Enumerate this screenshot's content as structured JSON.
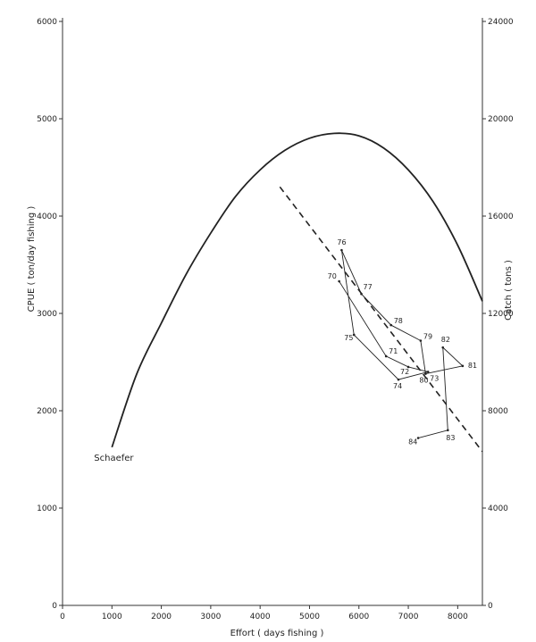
{
  "chart_data": {
    "type": "line",
    "xlabel": "Effort  ( days fishing )",
    "ylabel": "CPUE  ( ton/day  fishing )",
    "y2label": "Catch  ( tons )",
    "xlim": [
      0,
      8500
    ],
    "ylim": [
      0,
      6000
    ],
    "y2lim": [
      0,
      24000
    ],
    "x_ticks": [
      0,
      1000,
      2000,
      3000,
      4000,
      5000,
      6000,
      7000,
      8000
    ],
    "y_ticks": [
      0,
      1000,
      2000,
      3000,
      4000,
      5000,
      6000
    ],
    "y2_ticks": [
      0,
      4000,
      8000,
      12000,
      16000,
      20000,
      24000
    ],
    "grid": false,
    "series": [
      {
        "name": "Schaefer",
        "axis": "right",
        "style": "solid-curve",
        "x": [
          1000,
          1500,
          2000,
          2500,
          3000,
          3500,
          4000,
          4500,
          5000,
          5500,
          6000,
          6500,
          7000,
          7500,
          8000,
          8500
        ],
        "y": [
          6500,
          9500,
          11600,
          13600,
          15300,
          16800,
          17900,
          18700,
          19200,
          19400,
          19300,
          18800,
          17900,
          16600,
          14800,
          12500
        ]
      },
      {
        "axis": "left",
        "style": "dashed-line",
        "x": [
          4400,
          8500
        ],
        "y": [
          4300,
          1580
        ]
      },
      {
        "axis": "left",
        "style": "connected-points",
        "labels": [
          "70",
          "71",
          "72",
          "73",
          "74",
          "75",
          "76",
          "77",
          "78",
          "79",
          "80",
          "81",
          "82",
          "83",
          "84"
        ],
        "x": [
          5600,
          6550,
          7000,
          7400,
          6800,
          5900,
          5650,
          6050,
          6650,
          7250,
          7350,
          8100,
          7700,
          7800,
          7200
        ],
        "y": [
          3330,
          2560,
          2450,
          2400,
          2320,
          2780,
          3650,
          3200,
          2880,
          2720,
          2380,
          2460,
          2650,
          1800,
          1720
        ]
      }
    ]
  }
}
